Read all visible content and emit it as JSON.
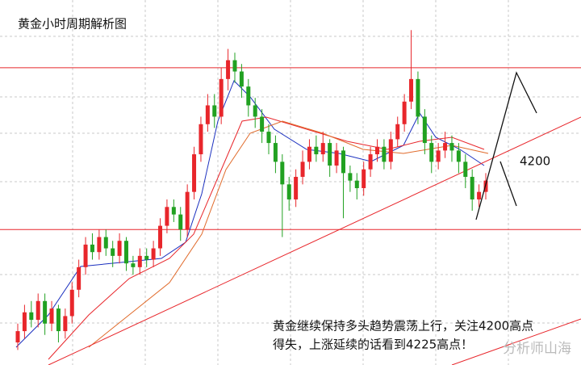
{
  "chart_data": {
    "type": "candlestick",
    "title": "黄金小时周期解析图",
    "annotation_lines": [
      "黄金继续保持多头趋势震荡上行，关注4200高点",
      "得失，上涨延续的话看到4225高点！"
    ],
    "level_label": "4200",
    "watermark": "分析师山海",
    "up_color": "#e8262b",
    "down_color": "#21a121",
    "ylim": [
      4146,
      4243
    ],
    "levels": [
      4225,
      4182
    ],
    "level_color": "#e8262b",
    "open": [
      4152,
      4155,
      4160,
      4158,
      4163,
      4157,
      4161,
      4155,
      4159,
      4166,
      4172,
      4178,
      4176,
      4180,
      4177,
      4175,
      4179,
      4173,
      4172,
      4175,
      4174,
      4177,
      4183,
      4188,
      4186,
      4182,
      4192,
      4202,
      4210,
      4215,
      4212,
      4222,
      4227,
      4224,
      4220,
      4215,
      4212,
      4208,
      4205,
      4200,
      4194,
      4190,
      4196,
      4200,
      4204,
      4202,
      4205,
      4199,
      4203,
      4197,
      4195,
      4193,
      4198,
      4202,
      4204,
      4200,
      4206,
      4210,
      4216,
      4222,
      4212,
      4205,
      4200,
      4203,
      4205,
      4203,
      4200,
      4196,
      4190,
      4192
    ],
    "close": [
      4155,
      4160,
      4158,
      4163,
      4157,
      4161,
      4155,
      4159,
      4166,
      4172,
      4178,
      4176,
      4180,
      4177,
      4175,
      4179,
      4173,
      4172,
      4175,
      4174,
      4177,
      4183,
      4188,
      4186,
      4182,
      4192,
      4202,
      4210,
      4215,
      4212,
      4222,
      4227,
      4224,
      4220,
      4215,
      4212,
      4208,
      4205,
      4200,
      4194,
      4190,
      4196,
      4200,
      4204,
      4202,
      4205,
      4199,
      4203,
      4197,
      4195,
      4193,
      4198,
      4202,
      4204,
      4200,
      4206,
      4210,
      4216,
      4222,
      4212,
      4205,
      4200,
      4203,
      4205,
      4203,
      4200,
      4196,
      4190,
      4192,
      4195
    ],
    "high": [
      4157,
      4162,
      4163,
      4165,
      4165,
      4163,
      4162,
      4161,
      4168,
      4174,
      4180,
      4181,
      4182,
      4182,
      4179,
      4181,
      4180,
      4175,
      4177,
      4177,
      4179,
      4185,
      4190,
      4190,
      4188,
      4194,
      4204,
      4212,
      4218,
      4218,
      4225,
      4230,
      4229,
      4226,
      4222,
      4217,
      4214,
      4210,
      4207,
      4202,
      4196,
      4198,
      4203,
      4206,
      4207,
      4208,
      4206,
      4205,
      4204,
      4199,
      4197,
      4200,
      4204,
      4206,
      4206,
      4208,
      4212,
      4218,
      4235,
      4224,
      4214,
      4207,
      4205,
      4208,
      4207,
      4205,
      4202,
      4198,
      4194,
      4197
    ],
    "low": [
      4150,
      4153,
      4156,
      4156,
      4154,
      4155,
      4152,
      4153,
      4157,
      4164,
      4170,
      4174,
      4174,
      4175,
      4172,
      4173,
      4171,
      4170,
      4170,
      4172,
      4172,
      4175,
      4181,
      4184,
      4179,
      4180,
      4190,
      4200,
      4208,
      4209,
      4210,
      4219,
      4221,
      4217,
      4212,
      4209,
      4205,
      4202,
      4197,
      4180,
      4187,
      4188,
      4194,
      4198,
      4200,
      4200,
      4196,
      4197,
      4185,
      4192,
      4190,
      4191,
      4196,
      4200,
      4198,
      4198,
      4204,
      4208,
      4214,
      4210,
      4202,
      4197,
      4198,
      4201,
      4200,
      4197,
      4193,
      4187,
      4188,
      4190
    ]
  }
}
